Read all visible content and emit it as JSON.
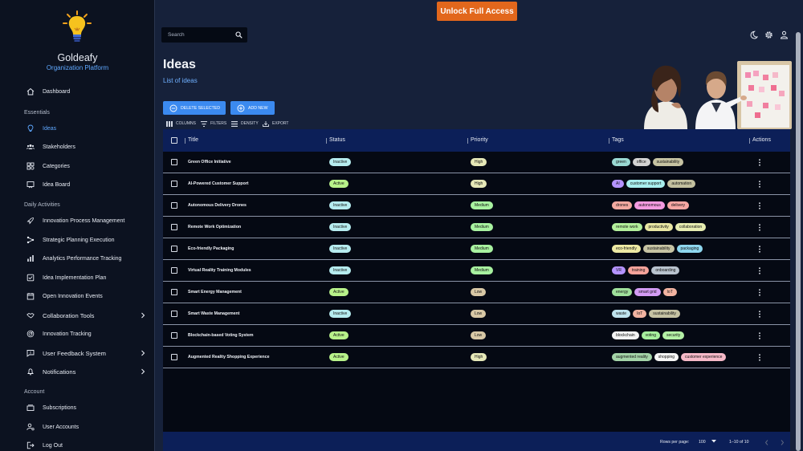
{
  "brand": {
    "name": "Goldeafy",
    "subtitle": "Organization Platform"
  },
  "banner": {
    "unlock_label": "Unlock Full Access"
  },
  "search": {
    "placeholder": "Search"
  },
  "sidebar": {
    "dashboard": "Dashboard",
    "section_essentials": "Essentials",
    "essentials": [
      "Ideas",
      "Stakeholders",
      "Categories",
      "Idea Board"
    ],
    "section_daily": "Daily Activities",
    "daily": [
      "Innovation Process Management",
      "Strategic Planning Execution",
      "Analytics Performance Tracking",
      "Idea Implementation Plan",
      "Open Innovation Events",
      "Collaboration Tools",
      "Innovation Tracking",
      "User Feedback System",
      "Notifications"
    ],
    "section_account": "Account",
    "account": [
      "Subscriptions",
      "User Accounts",
      "Log Out"
    ]
  },
  "page": {
    "title": "Ideas",
    "subtitle": "List of ideas"
  },
  "actions": {
    "delete_label": "DELETE SELECTED",
    "add_label": "ADD NEW"
  },
  "toolbar": {
    "columns": "COLUMNS",
    "filters": "FILTERS",
    "density": "DENSITY",
    "export": "EXPORT"
  },
  "table": {
    "headers": {
      "title": "Title",
      "status": "Status",
      "priority": "Priority",
      "tags": "Tags",
      "actions": "Actions"
    },
    "rows": [
      {
        "title": "Green Office Initiative",
        "status": "Inactive",
        "priority": "High",
        "tags": [
          "green",
          "office",
          "sustainability"
        ]
      },
      {
        "title": "AI-Powered Customer Support",
        "status": "Active",
        "priority": "High",
        "tags": [
          "AI",
          "customer support",
          "automation"
        ]
      },
      {
        "title": "Autonomous Delivery Drones",
        "status": "Inactive",
        "priority": "Medium",
        "tags": [
          "drones",
          "autonomous",
          "delivery"
        ]
      },
      {
        "title": "Remote Work Optimization",
        "status": "Inactive",
        "priority": "Medium",
        "tags": [
          "remote work",
          "productivity",
          "collaboration"
        ]
      },
      {
        "title": "Eco-friendly Packaging",
        "status": "Inactive",
        "priority": "Medium",
        "tags": [
          "eco-friendly",
          "sustainability",
          "packaging"
        ]
      },
      {
        "title": "Virtual Reality Training Modules",
        "status": "Inactive",
        "priority": "Medium",
        "tags": [
          "VR",
          "training",
          "onboarding"
        ]
      },
      {
        "title": "Smart Energy Management",
        "status": "Active",
        "priority": "Low",
        "tags": [
          "energy",
          "smart grid",
          "IoT"
        ]
      },
      {
        "title": "Smart Waste Management",
        "status": "Inactive",
        "priority": "Low",
        "tags": [
          "waste",
          "IoT",
          "sustainability"
        ]
      },
      {
        "title": "Blockchain-based Voting System",
        "status": "Active",
        "priority": "Low",
        "tags": [
          "blockchain",
          "voting",
          "security"
        ]
      },
      {
        "title": "Augmented Reality Shopping Experience",
        "status": "Active",
        "priority": "High",
        "tags": [
          "augmented reality",
          "shopping",
          "customer experience"
        ]
      }
    ]
  },
  "colors": {
    "status": {
      "Active": "#b8f28a",
      "Inactive": "#b6ecef"
    },
    "priority": {
      "High": "#e6e8b8",
      "Medium": "#a8f2a0",
      "Low": "#d8c8a6"
    },
    "tags": {
      "green": "#9ad9d3",
      "office": "#d3d3d3",
      "sustainability": "#c6c3a3",
      "AI": "#b493ff",
      "customer support": "#a8efee",
      "automation": "#c3c09f",
      "drones": "#f4a9a0",
      "autonomous": "#f59ae0",
      "delivery": "#f7a7a3",
      "remote work": "#b3ef9b",
      "productivity": "#e9e7a3",
      "collaboration": "#e7edb1",
      "eco-friendly": "#ede9a3",
      "packaging": "#8ed7ef",
      "VR": "#b493ff",
      "training": "#f6a39b",
      "onboarding": "#b9c3ce",
      "energy": "#9fe09b",
      "smart grid": "#d39cf5",
      "IoT": "#f2b3a1",
      "waste": "#bfe3ee",
      "blockchain": "#f3f3f3",
      "voting": "#a6ef9d",
      "security": "#b4f0a5",
      "augmented reality": "#a4d4a8",
      "shopping": "#f6f6f6",
      "customer experience": "#f6b9c8"
    }
  },
  "pagination": {
    "rows_label": "Rows per page:",
    "rows_value": "100",
    "range": "1–10 of 10"
  }
}
